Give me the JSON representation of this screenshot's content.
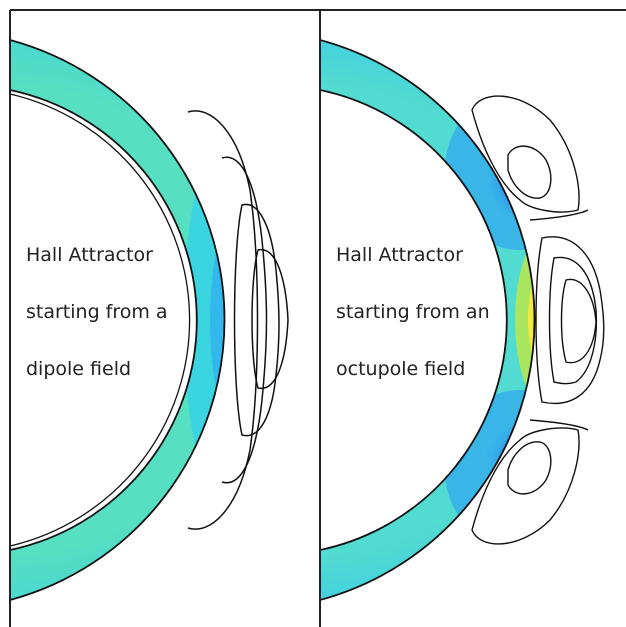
{
  "panels": [
    {
      "id": "dipole",
      "label_lines": [
        "Hall Attractor",
        "starting from a",
        "dipole field"
      ]
    },
    {
      "id": "octupole",
      "label_lines": [
        "Hall Attractor",
        "starting from an",
        "octupole field"
      ]
    }
  ],
  "colors": {
    "background": "#ffffff",
    "frame": "#222222",
    "shell_base": "#57dfc2",
    "shell_mid": "#33cdef",
    "low_blue": "#2e73ee",
    "deep_blue": "#1830e6",
    "yellow": "#f4e93f",
    "orange": "#fb8a26",
    "red": "#f44a20"
  },
  "icons": [
    "contour-colormap"
  ]
}
